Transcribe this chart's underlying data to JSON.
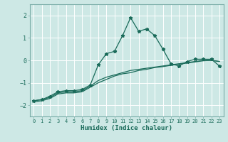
{
  "title": "",
  "xlabel": "Humidex (Indice chaleur)",
  "ylabel": "",
  "bg_color": "#cde8e5",
  "grid_color": "#b0d4d0",
  "line_color": "#1a6b5a",
  "x_ticks": [
    0,
    1,
    2,
    3,
    4,
    5,
    6,
    7,
    8,
    9,
    10,
    11,
    12,
    13,
    14,
    15,
    16,
    17,
    18,
    19,
    20,
    21,
    22,
    23
  ],
  "ylim": [
    -2.5,
    2.5
  ],
  "xlim": [
    -0.5,
    23.5
  ],
  "yticks": [
    -2,
    -1,
    0,
    1,
    2
  ],
  "series1_x": [
    0,
    1,
    2,
    3,
    4,
    5,
    6,
    7,
    8,
    9,
    10,
    11,
    12,
    13,
    14,
    15,
    16,
    17,
    18,
    19,
    20,
    21,
    22,
    23
  ],
  "series1_y": [
    -1.8,
    -1.75,
    -1.6,
    -1.4,
    -1.35,
    -1.35,
    -1.3,
    -1.1,
    -0.2,
    0.3,
    0.4,
    1.1,
    1.9,
    1.3,
    1.4,
    1.1,
    0.5,
    -0.15,
    -0.25,
    -0.05,
    0.05,
    0.05,
    0.05,
    -0.25
  ],
  "series2_x": [
    0,
    1,
    2,
    3,
    4,
    5,
    6,
    7,
    8,
    9,
    10,
    11,
    12,
    13,
    14,
    15,
    16,
    17,
    18,
    19,
    20,
    21,
    22,
    23
  ],
  "series2_y": [
    -1.8,
    -1.75,
    -1.65,
    -1.45,
    -1.4,
    -1.4,
    -1.35,
    -1.15,
    -0.9,
    -0.75,
    -0.65,
    -0.55,
    -0.45,
    -0.4,
    -0.35,
    -0.3,
    -0.25,
    -0.2,
    -0.15,
    -0.1,
    -0.05,
    0.0,
    0.0,
    -0.05
  ],
  "series3_x": [
    0,
    1,
    2,
    3,
    4,
    5,
    6,
    7,
    8,
    9,
    10,
    11,
    12,
    13,
    14,
    15,
    16,
    17,
    18,
    19,
    20,
    21,
    22,
    23
  ],
  "series3_y": [
    -1.85,
    -1.8,
    -1.7,
    -1.5,
    -1.45,
    -1.45,
    -1.4,
    -1.2,
    -1.0,
    -0.85,
    -0.7,
    -0.6,
    -0.55,
    -0.45,
    -0.4,
    -0.32,
    -0.28,
    -0.22,
    -0.17,
    -0.12,
    -0.07,
    -0.02,
    0.0,
    -0.05
  ]
}
